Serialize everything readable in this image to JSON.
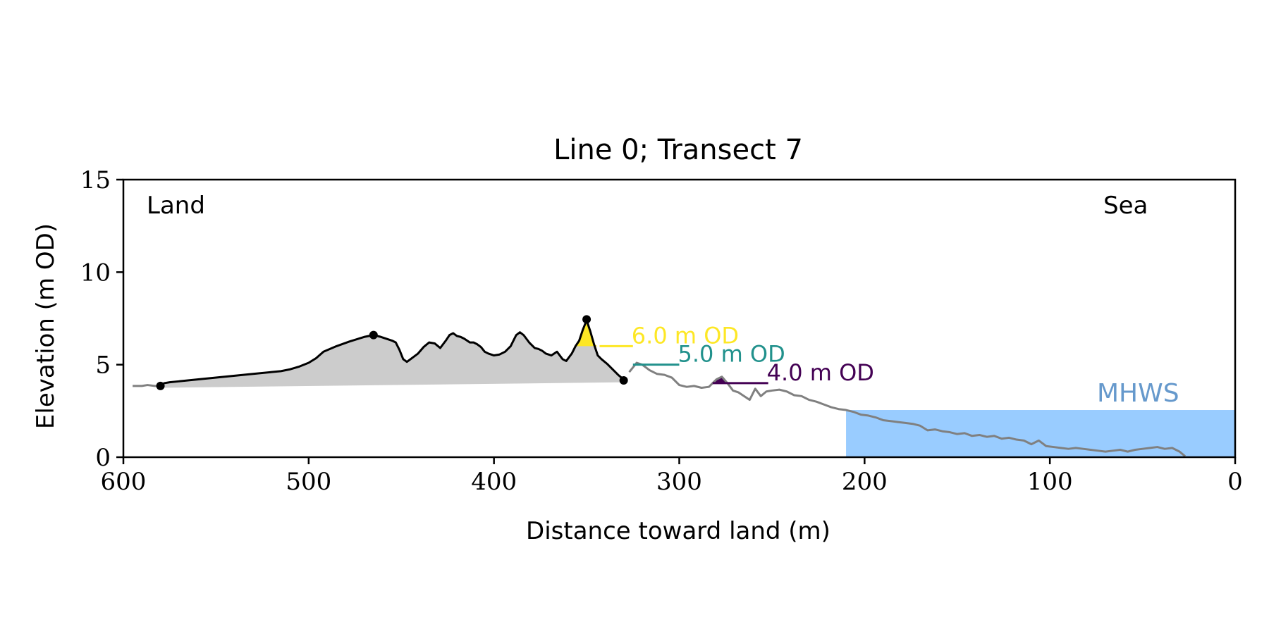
{
  "chart_data": {
    "type": "line",
    "title": "Line 0; Transect 7",
    "xlabel": "Distance toward land (m)",
    "ylabel": "Elevation (m OD)",
    "xlim": [
      600,
      0
    ],
    "ylim": [
      0,
      15
    ],
    "x_axis_reversed": true,
    "xticks": [
      600,
      500,
      400,
      300,
      200,
      100,
      0
    ],
    "yticks": [
      0,
      5,
      10,
      15
    ],
    "grid": false,
    "annotations": {
      "land_label": "Land",
      "sea_label": "Sea",
      "mhws_label": "MHWS"
    },
    "mhws_level": 2.55,
    "series": [
      {
        "role": "seaward profile",
        "color": "#808080",
        "x": [
          327,
          323,
          320,
          316,
          312,
          308,
          304,
          300,
          296,
          292,
          288,
          284,
          280,
          277,
          274,
          271,
          268,
          265,
          262,
          259,
          256,
          253,
          250,
          246,
          242,
          238,
          234,
          230,
          226,
          222,
          218,
          214,
          210,
          206,
          202,
          198,
          194,
          190,
          186,
          182,
          178,
          174,
          170,
          166,
          162,
          158,
          154,
          150,
          146,
          142,
          138,
          134,
          130,
          126,
          122,
          118,
          114,
          110,
          106,
          102,
          98,
          94,
          90,
          86,
          82,
          78,
          74,
          70,
          66,
          62,
          58,
          54,
          50,
          46,
          42,
          38,
          34,
          30,
          27
        ],
        "y": [
          4.6,
          5.1,
          5.0,
          4.7,
          4.5,
          4.45,
          4.3,
          3.9,
          3.8,
          3.85,
          3.75,
          3.8,
          4.2,
          4.35,
          4.0,
          3.6,
          3.5,
          3.3,
          3.1,
          3.7,
          3.3,
          3.55,
          3.6,
          3.65,
          3.55,
          3.35,
          3.3,
          3.1,
          3.0,
          2.85,
          2.7,
          2.6,
          2.55,
          2.45,
          2.3,
          2.25,
          2.15,
          2.0,
          1.95,
          1.9,
          1.85,
          1.8,
          1.7,
          1.45,
          1.5,
          1.4,
          1.35,
          1.25,
          1.3,
          1.15,
          1.2,
          1.1,
          1.15,
          1.0,
          1.05,
          0.95,
          0.9,
          0.7,
          0.9,
          0.6,
          0.55,
          0.5,
          0.45,
          0.5,
          0.45,
          0.4,
          0.35,
          0.3,
          0.35,
          0.4,
          0.3,
          0.4,
          0.45,
          0.5,
          0.55,
          0.45,
          0.5,
          0.3,
          0.05
        ]
      },
      {
        "role": "landward tail",
        "color": "#808080",
        "x": [
          595,
          590,
          587,
          583,
          580
        ],
        "y": [
          3.85,
          3.85,
          3.9,
          3.85,
          3.85
        ]
      },
      {
        "role": "dune profile",
        "color": "#000000",
        "x": [
          580,
          578,
          575,
          570,
          560,
          550,
          540,
          530,
          520,
          515,
          510,
          505,
          500,
          496,
          492,
          485,
          478,
          470,
          465,
          461,
          458,
          455,
          453,
          451,
          449,
          447,
          445,
          441,
          438,
          435,
          432,
          429,
          426,
          424,
          422,
          420,
          418,
          416,
          413,
          411,
          409,
          407,
          405,
          403,
          400,
          397,
          394,
          391,
          388,
          386,
          384,
          381,
          378,
          376,
          374,
          372,
          369,
          366,
          363,
          361,
          358,
          356,
          354,
          352,
          350,
          348,
          346,
          344,
          342,
          339,
          336,
          333,
          330,
          328
        ],
        "y": [
          3.85,
          4.0,
          4.05,
          4.1,
          4.2,
          4.3,
          4.4,
          4.5,
          4.6,
          4.65,
          4.75,
          4.9,
          5.1,
          5.35,
          5.7,
          6.0,
          6.25,
          6.5,
          6.6,
          6.5,
          6.4,
          6.3,
          6.2,
          5.8,
          5.3,
          5.15,
          5.3,
          5.6,
          5.95,
          6.2,
          6.15,
          5.9,
          6.3,
          6.6,
          6.7,
          6.55,
          6.5,
          6.4,
          6.2,
          6.2,
          6.1,
          5.95,
          5.7,
          5.6,
          5.5,
          5.55,
          5.7,
          6.0,
          6.6,
          6.75,
          6.6,
          6.2,
          5.9,
          5.85,
          5.75,
          5.6,
          5.5,
          5.7,
          5.3,
          5.2,
          5.6,
          6.0,
          6.3,
          6.9,
          7.4,
          6.8,
          6.1,
          5.5,
          5.3,
          5.05,
          4.75,
          4.45,
          4.2,
          4.15
        ]
      }
    ],
    "markers": [
      {
        "x": 580,
        "y": 3.85
      },
      {
        "x": 465,
        "y": 6.6
      },
      {
        "x": 350,
        "y": 7.45
      },
      {
        "x": 330,
        "y": 4.15
      }
    ],
    "gray_fill_baseline": [
      {
        "x": 580,
        "y": 3.75
      },
      {
        "x": 330,
        "y": 4.05
      }
    ],
    "levels": [
      {
        "label": "6.0 m OD",
        "value": 6.0,
        "color": "#fde725",
        "line_x": [
          343,
          325
        ],
        "fill_x": [
          357,
          343
        ]
      },
      {
        "label": "5.0 m OD",
        "value": 5.0,
        "color": "#21918c",
        "line_x": [
          325,
          300
        ],
        "fill_x": [
          324,
          325
        ]
      },
      {
        "label": "4.0 m OD",
        "value": 4.0,
        "color": "#440154",
        "line_x": [
          282,
          252
        ],
        "fill_x": [
          281,
          273
        ]
      }
    ],
    "colors": {
      "sea_fill": "#99ccff",
      "mhws_text": "#6699cc",
      "dune_fill": "#cccccc"
    }
  }
}
